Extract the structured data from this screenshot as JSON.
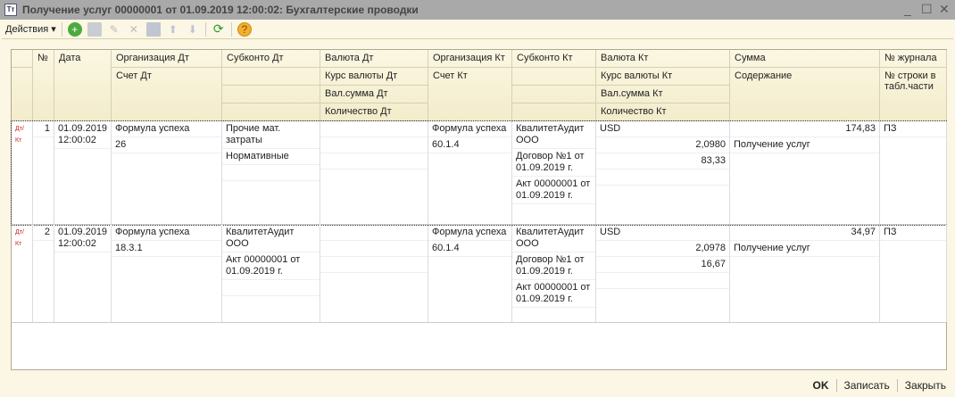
{
  "window": {
    "title": "Получение услуг 00000001 от 01.09.2019 12:00:02: Бухгалтерские проводки",
    "icon": "Тт"
  },
  "toolbar": {
    "actions": "Действия ▾",
    "icons": [
      "add-icon",
      "copy-icon",
      "edit-icon",
      "delete-icon",
      "post-icon",
      "move-up-icon",
      "move-down-icon",
      "refresh-icon",
      "help-icon"
    ]
  },
  "columns": [
    {
      "lines": [
        "",
        ""
      ]
    },
    {
      "lines": [
        "№"
      ]
    },
    {
      "lines": [
        "Дата"
      ]
    },
    {
      "lines": [
        "Организация Дт",
        "Счет Дт"
      ]
    },
    {
      "lines": [
        "Субконто Дт",
        "",
        "",
        ""
      ]
    },
    {
      "lines": [
        "Валюта Дт",
        "Курс валюты Дт",
        "Вал.сумма Дт",
        "Количество Дт"
      ]
    },
    {
      "lines": [
        "Организация Кт",
        "Счет Кт"
      ]
    },
    {
      "lines": [
        "Субконто Кт",
        "",
        "",
        ""
      ]
    },
    {
      "lines": [
        "Валюта Кт",
        "Курс валюты Кт",
        "Вал.сумма Кт",
        "Количество Кт"
      ]
    },
    {
      "lines": [
        "Сумма",
        "Содержание"
      ]
    },
    {
      "lines": [
        "№ журнала",
        "№ строки в табл.части"
      ]
    }
  ],
  "rows": [
    {
      "icon": "Дт/Кт",
      "num": "1",
      "date": "01.09.2019 12:00:02",
      "org_dt": "Формула успеха",
      "account_dt": "26",
      "subconto_dt": [
        "Прочие мат. затраты",
        "Нормативные",
        ""
      ],
      "currency_dt": [
        "",
        "",
        ""
      ],
      "org_kt": "Формула успеха",
      "account_kt": "60.1.4",
      "subconto_kt": [
        "КвалитетАудит ООО",
        "Договор №1 от 01.09.2019 г.",
        "Акт 00000001 от 01.09.2019 г."
      ],
      "currency_kt": "USD",
      "rate_kt": "2,0980",
      "cur_sum_kt": "83,33",
      "qty_kt": "",
      "sum": "174,83",
      "content": "Получение услуг",
      "journal": "ПЗ"
    },
    {
      "icon": "Дт/Кт",
      "num": "2",
      "date": "01.09.2019 12:00:02",
      "org_dt": "Формула успеха",
      "account_dt": "18.3.1",
      "subconto_dt": [
        "КвалитетАудит ООО",
        "Акт 00000001 от 01.09.2019 г.",
        ""
      ],
      "currency_dt": [
        "",
        "",
        ""
      ],
      "org_kt": "Формула успеха",
      "account_kt": "60.1.4",
      "subconto_kt": [
        "КвалитетАудит ООО",
        "Договор №1 от 01.09.2019 г.",
        "Акт 00000001 от 01.09.2019 г."
      ],
      "currency_kt": "USD",
      "rate_kt": "2,0978",
      "cur_sum_kt": "16,67",
      "qty_kt": "",
      "sum": "34,97",
      "content": "Получение услуг",
      "journal": "ПЗ"
    }
  ],
  "footer": {
    "ok": "OK",
    "save": "Записать",
    "close": "Закрыть"
  }
}
